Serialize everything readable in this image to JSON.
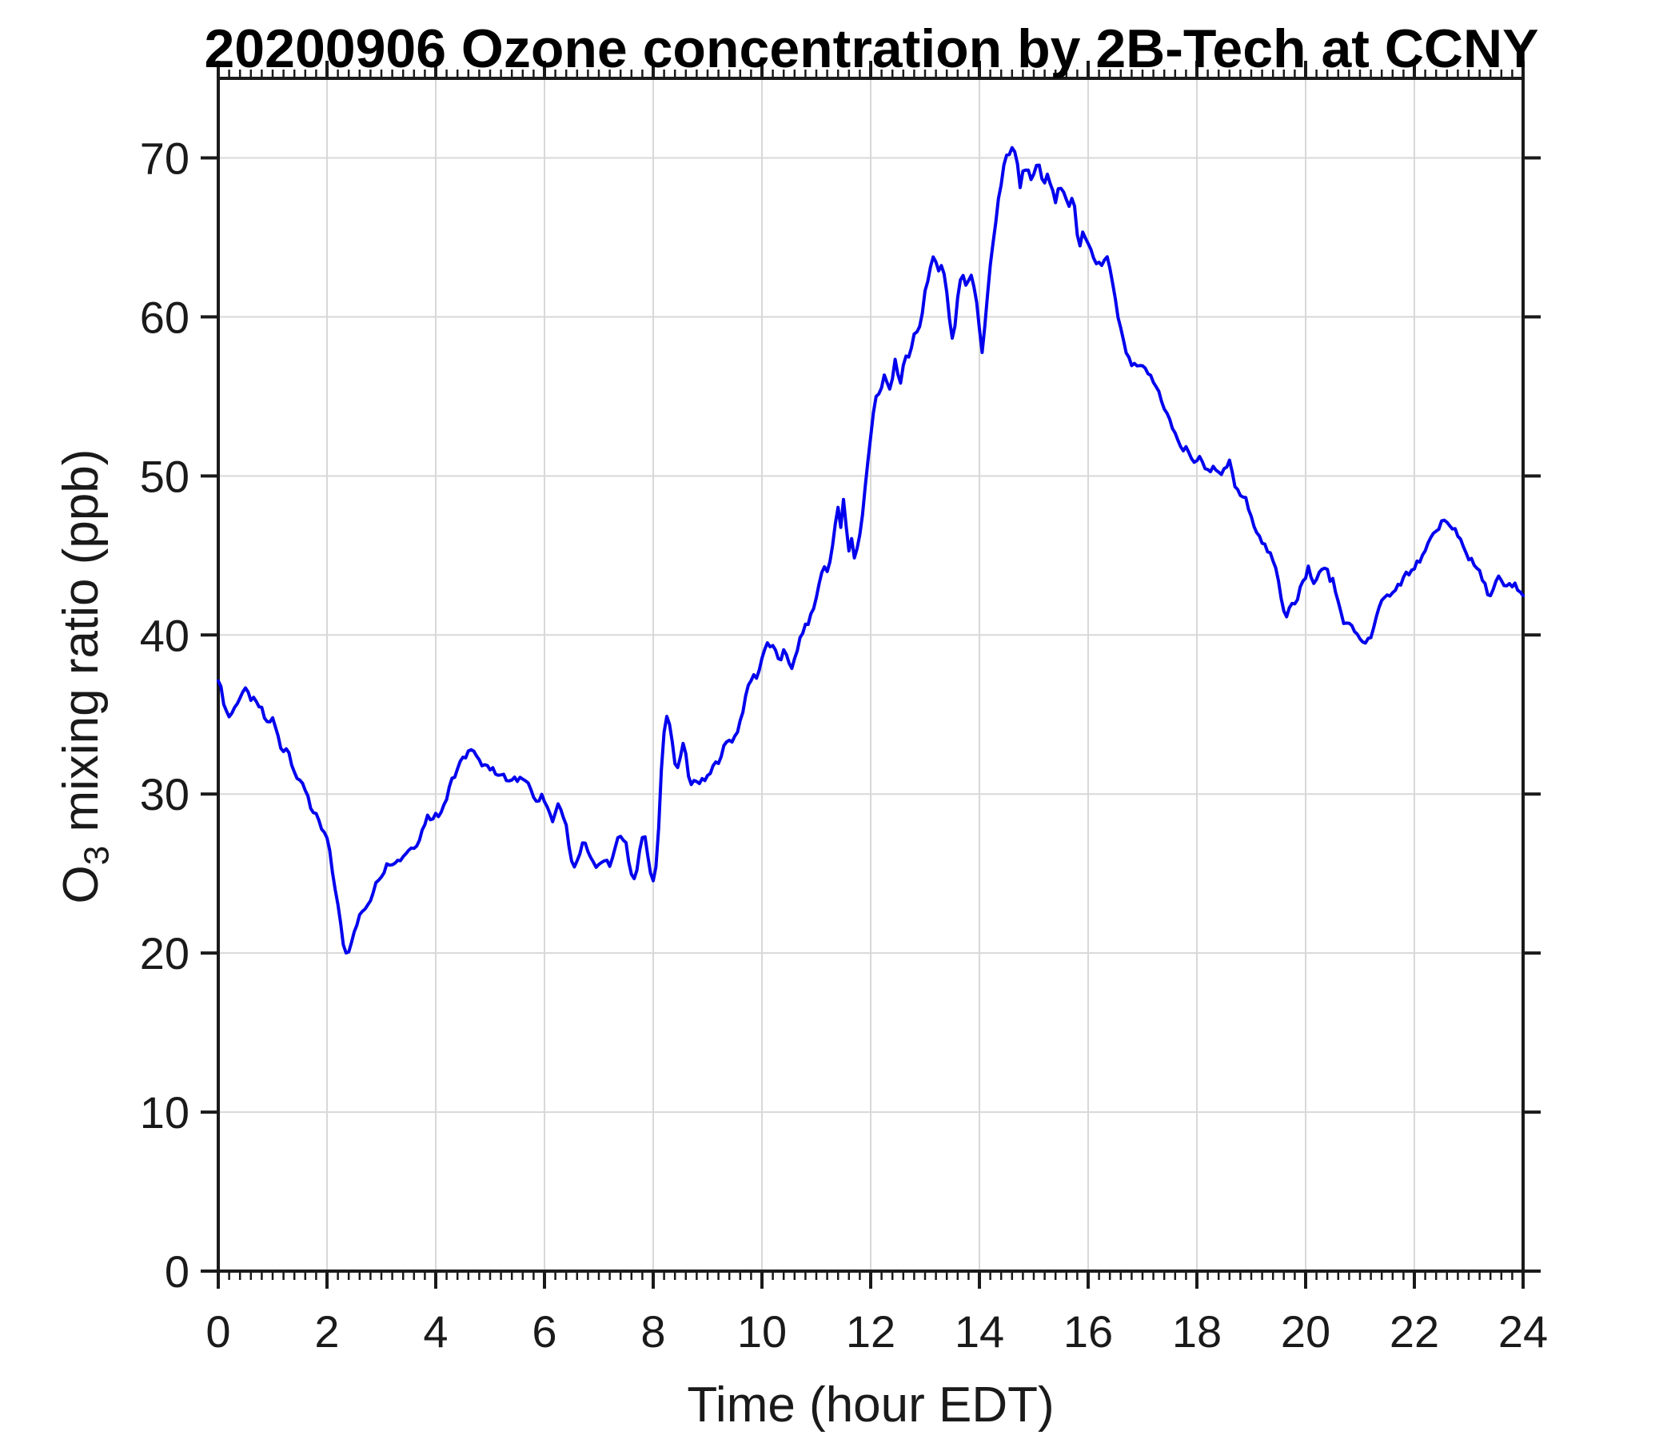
{
  "chart_data": {
    "type": "line",
    "title": "20200906 Ozone concentration by 2B-Tech at CCNY",
    "xlabel": "Time (hour EDT)",
    "ylabel": "O3 mixing ratio (ppb)",
    "ylabel_parts": {
      "base": "O",
      "sub": "3",
      "rest": " mixing ratio (ppb)"
    },
    "xlim": [
      0,
      24
    ],
    "ylim": [
      0,
      75
    ],
    "xticks": [
      0,
      2,
      4,
      6,
      8,
      10,
      12,
      14,
      16,
      18,
      20,
      22,
      24
    ],
    "yticks": [
      0,
      10,
      20,
      30,
      40,
      50,
      60,
      70
    ],
    "x_minor_step": 0.2,
    "grid": true,
    "legend": "none",
    "colors": {
      "line": "#0000EE",
      "grid": "#D8D8D8",
      "axis": "#1a1a1a",
      "background": "#FFFFFF"
    },
    "series": [
      {
        "name": "O3 mixing ratio",
        "x_start": 0,
        "x_step": 0.05,
        "y": [
          37.3,
          36.6,
          35.8,
          35.2,
          34.9,
          35.1,
          35.4,
          35.8,
          36.1,
          36.4,
          36.5,
          36.3,
          36.0,
          35.9,
          35.7,
          35.5,
          35.3,
          34.8,
          34.5,
          34.6,
          34.7,
          34.2,
          33.6,
          32.9,
          32.8,
          32.9,
          32.6,
          32.0,
          31.5,
          31.0,
          30.7,
          30.6,
          30.3,
          29.9,
          29.2,
          28.8,
          28.6,
          28.2,
          27.8,
          27.5,
          27.2,
          26.3,
          25.1,
          24.1,
          23.0,
          21.8,
          20.6,
          20.0,
          20.2,
          20.8,
          21.4,
          21.9,
          22.3,
          22.6,
          22.8,
          22.9,
          23.3,
          23.9,
          24.5,
          24.7,
          24.9,
          25.2,
          25.5,
          25.7,
          25.7,
          25.8,
          25.8,
          25.9,
          26.1,
          26.3,
          26.5,
          26.6,
          26.7,
          26.9,
          27.2,
          27.7,
          28.2,
          28.6,
          28.5,
          28.6,
          28.7,
          28.6,
          29.0,
          29.4,
          29.8,
          30.5,
          31.0,
          31.1,
          31.6,
          31.9,
          32.2,
          32.4,
          32.7,
          32.7,
          32.6,
          32.3,
          32.0,
          31.9,
          32.0,
          31.8,
          31.6,
          31.5,
          31.4,
          31.3,
          31.2,
          31.1,
          30.9,
          30.8,
          30.8,
          30.9,
          30.9,
          31.0,
          31.1,
          31.0,
          30.7,
          30.3,
          29.8,
          29.4,
          29.6,
          29.8,
          29.6,
          29.1,
          28.6,
          28.4,
          29.0,
          29.3,
          29.1,
          28.6,
          27.9,
          26.8,
          25.8,
          25.3,
          25.7,
          26.4,
          26.9,
          26.8,
          26.5,
          25.9,
          25.6,
          25.5,
          25.6,
          25.6,
          25.7,
          25.7,
          25.6,
          25.9,
          26.5,
          27.1,
          27.3,
          27.1,
          26.8,
          25.9,
          25.1,
          24.6,
          25.2,
          26.3,
          27.1,
          27.3,
          26.2,
          25.1,
          24.4,
          25.4,
          28.0,
          31.5,
          34.0,
          34.9,
          34.3,
          33.2,
          31.9,
          31.6,
          32.5,
          33.1,
          32.4,
          31.0,
          30.6,
          30.8,
          30.9,
          30.7,
          30.8,
          30.9,
          31.0,
          31.3,
          31.7,
          31.9,
          32.1,
          32.5,
          32.9,
          33.2,
          33.4,
          33.4,
          33.6,
          34.0,
          34.6,
          35.3,
          36.0,
          36.8,
          37.2,
          37.4,
          37.4,
          37.8,
          38.5,
          39.2,
          39.5,
          39.3,
          39.2,
          39.0,
          38.6,
          38.3,
          38.9,
          38.8,
          38.3,
          38.0,
          38.4,
          38.9,
          39.8,
          40.2,
          40.5,
          40.8,
          41.2,
          41.7,
          42.3,
          43.2,
          44.0,
          44.2,
          44.0,
          44.6,
          45.8,
          47.0,
          47.9,
          46.8,
          48.4,
          46.8,
          45.2,
          46.1,
          44.9,
          45.4,
          46.4,
          47.6,
          49.3,
          51.0,
          52.4,
          53.9,
          55.0,
          55.3,
          55.6,
          56.4,
          55.8,
          55.3,
          56.1,
          57.3,
          56.3,
          55.9,
          56.9,
          57.7,
          57.3,
          57.9,
          58.8,
          59.1,
          59.5,
          60.3,
          61.6,
          62.4,
          63.1,
          63.6,
          63.3,
          62.9,
          63.4,
          62.8,
          61.5,
          59.8,
          58.7,
          59.5,
          61.2,
          62.4,
          62.6,
          62.0,
          62.3,
          62.5,
          61.9,
          61.0,
          59.3,
          57.9,
          59.5,
          61.5,
          63.3,
          64.5,
          65.9,
          67.5,
          68.4,
          69.6,
          70.1,
          70.2,
          70.5,
          70.3,
          69.6,
          68.2,
          69.0,
          69.4,
          69.3,
          68.5,
          69.1,
          69.6,
          69.4,
          68.7,
          68.4,
          68.9,
          68.5,
          68.0,
          67.1,
          67.9,
          68.1,
          67.8,
          67.4,
          67.0,
          67.4,
          66.8,
          65.3,
          64.6,
          65.2,
          64.8,
          64.5,
          64.1,
          63.6,
          63.4,
          63.4,
          63.3,
          63.5,
          63.7,
          63.0,
          62.0,
          61.0,
          60.0,
          59.2,
          58.4,
          57.8,
          57.3,
          57.0,
          56.9,
          56.9,
          56.8,
          56.8,
          56.7,
          56.5,
          56.2,
          55.9,
          55.6,
          55.3,
          54.8,
          54.3,
          53.9,
          53.5,
          53.0,
          52.6,
          52.3,
          51.9,
          51.6,
          51.7,
          51.4,
          51.2,
          50.9,
          51.0,
          51.1,
          50.9,
          50.6,
          50.3,
          50.4,
          50.6,
          50.5,
          50.1,
          50.0,
          50.3,
          50.6,
          50.85,
          50.2,
          49.4,
          49.0,
          48.8,
          48.7,
          48.5,
          47.9,
          47.3,
          47.0,
          46.6,
          46.3,
          45.9,
          45.6,
          45.3,
          45.0,
          44.6,
          44.1,
          43.4,
          42.4,
          41.6,
          41.25,
          41.8,
          42.1,
          41.9,
          42.2,
          42.9,
          43.3,
          43.7,
          44.25,
          43.6,
          43.2,
          43.5,
          43.9,
          44.3,
          44.1,
          44.0,
          43.4,
          43.6,
          42.8,
          42.0,
          41.3,
          40.8,
          40.7,
          40.6,
          40.5,
          40.2,
          40.0,
          39.8,
          39.6,
          39.55,
          39.7,
          40.0,
          40.5,
          41.1,
          41.6,
          42.0,
          42.25,
          42.4,
          42.6,
          42.8,
          42.9,
          43.1,
          43.3,
          43.6,
          43.9,
          43.7,
          44.0,
          44.25,
          44.5,
          44.75,
          44.9,
          45.2,
          45.6,
          46.0,
          46.3,
          46.55,
          46.8,
          47.1,
          47.2,
          47.0,
          46.8,
          46.6,
          46.7,
          46.3,
          46.0,
          45.6,
          45.3,
          44.8,
          44.65,
          44.4,
          44.15,
          43.9,
          43.5,
          43.1,
          42.7,
          42.5,
          42.8,
          43.3,
          43.6,
          43.3,
          43.0,
          43.1,
          43.1,
          43.0,
          43.2,
          42.9,
          42.7,
          42.4
        ]
      }
    ]
  }
}
